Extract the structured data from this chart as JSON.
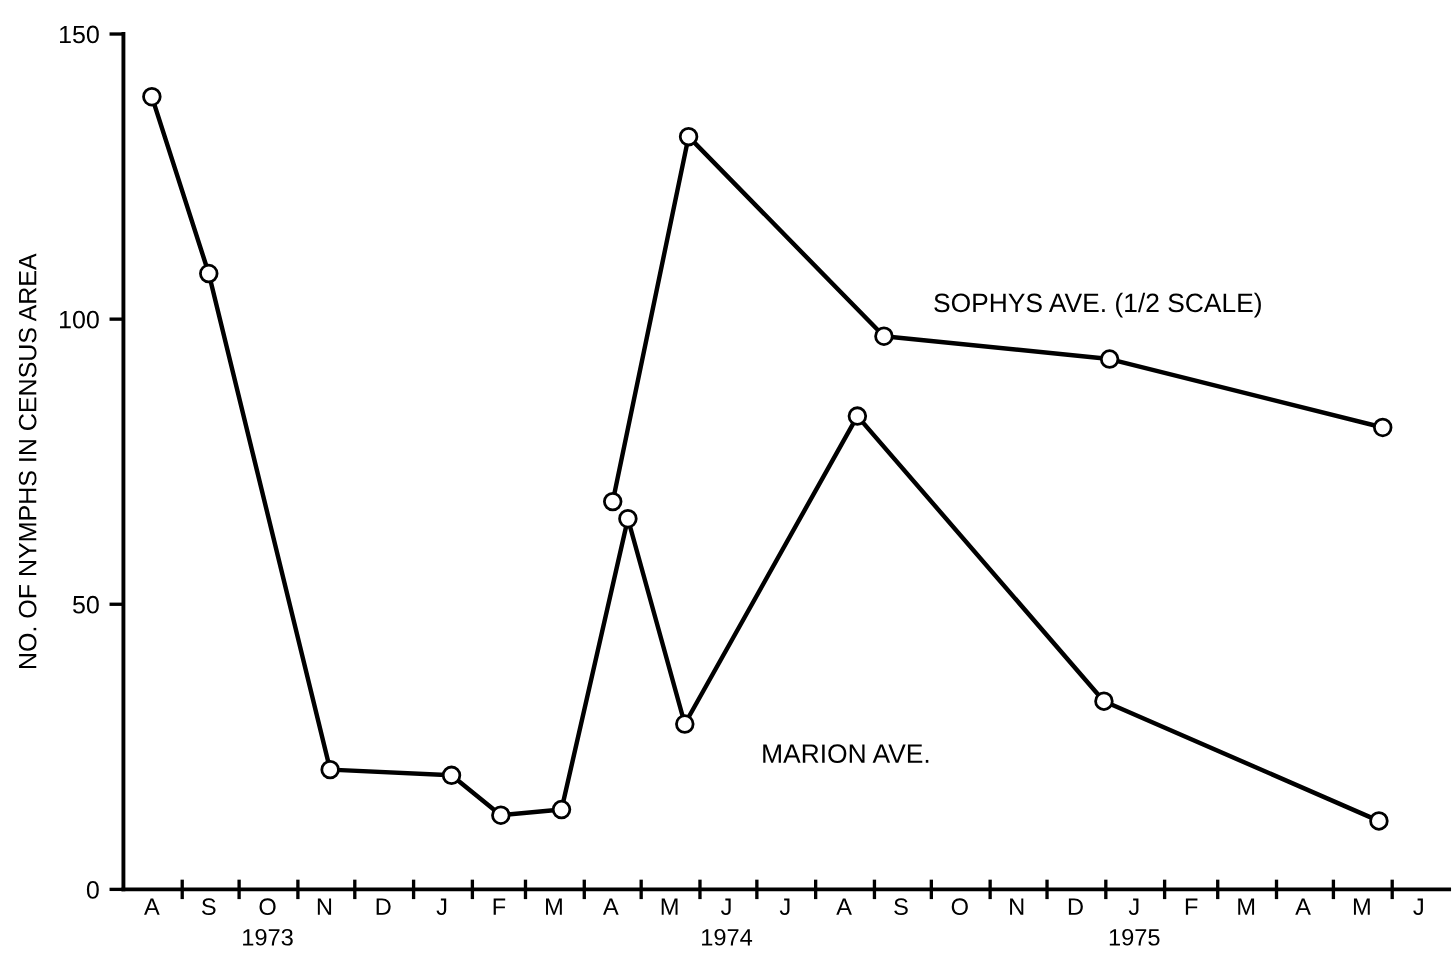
{
  "chart_data": {
    "type": "line",
    "ylabel": "NO. OF NYMPHS IN CENSUS AREA",
    "series": [
      {
        "name": "MARION AVE.",
        "color": "#000000",
        "x": [
          "1973-08-16",
          "1973-09-15",
          "1973-11-18",
          "1974-01-21",
          "1974-02-16",
          "1974-03-20",
          "1974-04-24",
          "1974-05-24",
          "1974-08-23",
          "1974-12-31",
          "1975-05-25"
        ],
        "values": [
          139,
          108,
          21,
          20,
          13,
          14,
          65,
          29,
          83,
          33,
          12
        ]
      },
      {
        "name": "SOPHYS AVE. (1/2 SCALE)",
        "color": "#000000",
        "x": [
          "1974-04-16",
          "1974-05-26",
          "1974-09-06",
          "1975-01-03",
          "1975-05-27"
        ],
        "values": [
          68,
          132,
          97,
          93,
          81
        ]
      }
    ],
    "xlim": [
      "1973-08-01",
      "1975-07-01"
    ],
    "ylim": [
      0,
      150
    ],
    "yticks": [
      0,
      50,
      100,
      150
    ],
    "xticks": [
      {
        "value": "1973-08-16",
        "label": "A"
      },
      {
        "value": "1973-09-01",
        "label": null
      },
      {
        "value": "1973-09-15",
        "label": "S"
      },
      {
        "value": "1973-10-01",
        "label": null
      },
      {
        "value": "1973-10-16",
        "label": "O\n1973"
      },
      {
        "value": "1973-11-01",
        "label": null
      },
      {
        "value": "1973-11-15",
        "label": "N"
      },
      {
        "value": "1973-12-01",
        "label": null
      },
      {
        "value": "1973-12-16",
        "label": "D"
      },
      {
        "value": "1974-01-01",
        "label": null
      },
      {
        "value": "1974-01-16",
        "label": "J"
      },
      {
        "value": "1974-02-01",
        "label": null
      },
      {
        "value": "1974-02-15",
        "label": "F"
      },
      {
        "value": "1974-03-01",
        "label": null
      },
      {
        "value": "1974-03-16",
        "label": "M"
      },
      {
        "value": "1974-04-01",
        "label": null
      },
      {
        "value": "1974-04-15",
        "label": "A"
      },
      {
        "value": "1974-05-01",
        "label": null
      },
      {
        "value": "1974-05-16",
        "label": "M"
      },
      {
        "value": "1974-06-01",
        "label": null
      },
      {
        "value": "1974-06-15",
        "label": "J\n1974"
      },
      {
        "value": "1974-07-01",
        "label": null
      },
      {
        "value": "1974-07-16",
        "label": "J"
      },
      {
        "value": "1974-08-01",
        "label": null
      },
      {
        "value": "1974-08-16",
        "label": "A"
      },
      {
        "value": "1974-09-01",
        "label": null
      },
      {
        "value": "1974-09-15",
        "label": "S"
      },
      {
        "value": "1974-10-01",
        "label": null
      },
      {
        "value": "1974-10-16",
        "label": "O"
      },
      {
        "value": "1974-11-01",
        "label": null
      },
      {
        "value": "1974-11-15",
        "label": "N"
      },
      {
        "value": "1974-12-01",
        "label": null
      },
      {
        "value": "1974-12-16",
        "label": "D"
      },
      {
        "value": "1975-01-01",
        "label": null
      },
      {
        "value": "1975-01-16",
        "label": "J\n1975"
      },
      {
        "value": "1975-02-01",
        "label": null
      },
      {
        "value": "1975-02-15",
        "label": "F"
      },
      {
        "value": "1975-03-01",
        "label": null
      },
      {
        "value": "1975-03-16",
        "label": "M"
      },
      {
        "value": "1975-04-01",
        "label": null
      },
      {
        "value": "1975-04-15",
        "label": "A"
      },
      {
        "value": "1975-05-01",
        "label": null
      },
      {
        "value": "1975-05-16",
        "label": "M"
      },
      {
        "value": "1975-06-01",
        "label": null
      },
      {
        "value": "1975-06-15",
        "label": "J"
      }
    ],
    "marker": "circle",
    "line_style": "solid",
    "grid": false,
    "legend": false
  }
}
